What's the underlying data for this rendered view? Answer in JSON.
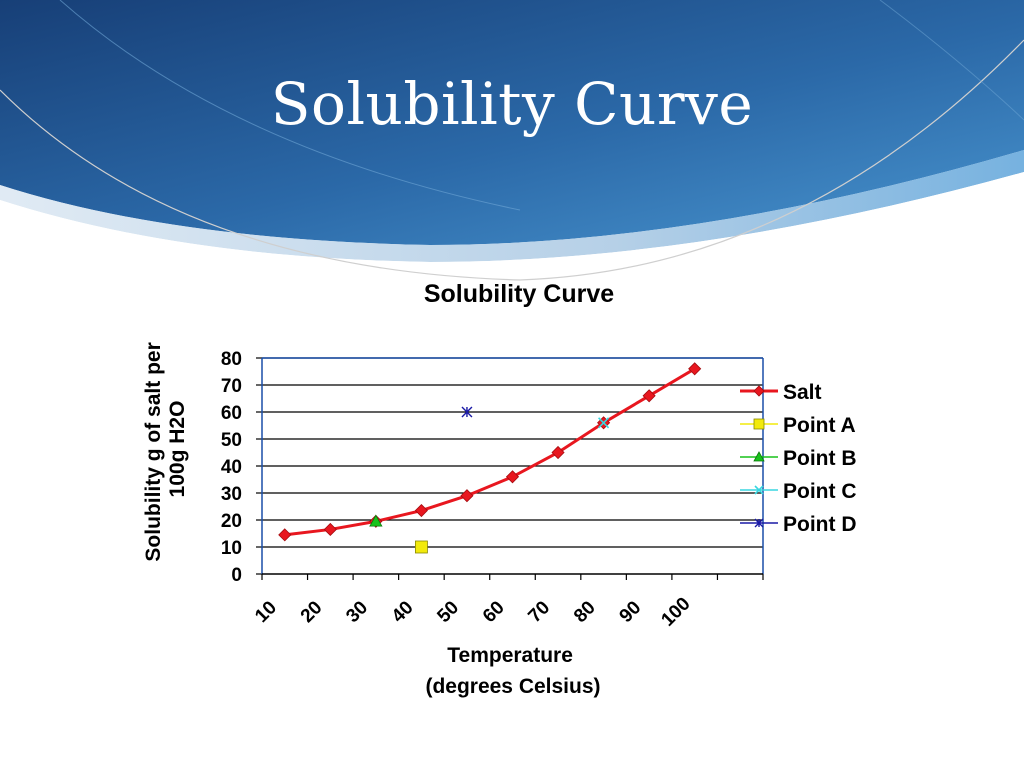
{
  "slide": {
    "title": "Solubility Curve"
  },
  "colors": {
    "banner_dark": "#1c4f8c",
    "banner_light": "#3d86c6",
    "salt": "#e8171f",
    "point_a": "#f2ea0c",
    "point_b": "#18c21a",
    "point_c": "#38d6e0",
    "point_d": "#1a1aa6"
  },
  "chart_data": {
    "type": "line",
    "title": "Solubility Curve",
    "xlabel_lines": [
      "Temperature",
      "(degrees Celsius)"
    ],
    "ylabel_lines": [
      "Solubility g of salt per",
      "100g H2O"
    ],
    "categories": [
      "10",
      "20",
      "30",
      "40",
      "50",
      "60",
      "70",
      "80",
      "90",
      "100"
    ],
    "ylim": [
      0,
      80
    ],
    "yticks": [
      0,
      10,
      20,
      30,
      40,
      50,
      60,
      70,
      80
    ],
    "grid": true,
    "legend_position": "right",
    "series": [
      {
        "name": "Salt",
        "marker": "diamond",
        "color": "#e8171f",
        "line": true,
        "values": [
          14.5,
          16.5,
          19.5,
          23.5,
          29,
          36,
          45,
          56,
          66,
          76
        ]
      },
      {
        "name": "Point A",
        "marker": "square",
        "color": "#f2ea0c",
        "line": false,
        "values": [
          null,
          null,
          null,
          10,
          null,
          null,
          null,
          null,
          null,
          null
        ]
      },
      {
        "name": "Point B",
        "marker": "triangle",
        "color": "#18c21a",
        "line": false,
        "values": [
          null,
          null,
          19.5,
          null,
          null,
          null,
          null,
          null,
          null,
          null
        ]
      },
      {
        "name": "Point C",
        "marker": "x",
        "color": "#38d6e0",
        "line": false,
        "values": [
          null,
          null,
          null,
          null,
          null,
          null,
          null,
          56,
          null,
          null
        ]
      },
      {
        "name": "Point D",
        "marker": "star",
        "color": "#1a1aa6",
        "line": false,
        "values": [
          null,
          null,
          null,
          null,
          60,
          null,
          null,
          null,
          null,
          null
        ]
      }
    ]
  }
}
